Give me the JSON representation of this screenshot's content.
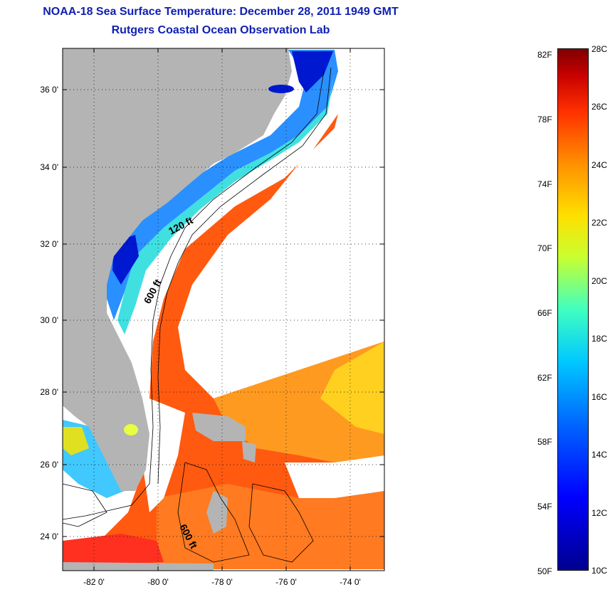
{
  "header": {
    "title": "NOAA-18 Sea Surface Temperature:  December 28, 2011 1949 GMT",
    "subtitle": "Rutgers Coastal Ocean Observation Lab"
  },
  "map": {
    "lat_ticks": [
      "36 0'",
      "34 0'",
      "32 0'",
      "30 0'",
      "28 0'",
      "26 0'",
      "24 0'"
    ],
    "lon_ticks": [
      "-82 0'",
      "-80 0'",
      "-78 0'",
      "-76 0'",
      "-74 0'"
    ],
    "contour_labels": [
      "120 ft",
      "600 ft",
      "600 ft"
    ],
    "land_color": "#b4b4b4",
    "no_data_color": "#ffffff"
  },
  "colorbar": {
    "fahrenheit": [
      "82F",
      "78F",
      "74F",
      "70F",
      "66F",
      "62F",
      "58F",
      "54F",
      "50F"
    ],
    "celsius": [
      "28C",
      "26C",
      "24C",
      "22C",
      "20C",
      "18C",
      "16C",
      "14C",
      "12C",
      "10C"
    ],
    "colors": [
      "#00008f",
      "#0000ff",
      "#0066ff",
      "#00c8ff",
      "#40ffc0",
      "#c8ff30",
      "#ffe000",
      "#ff9000",
      "#ff3000",
      "#800000"
    ]
  }
}
